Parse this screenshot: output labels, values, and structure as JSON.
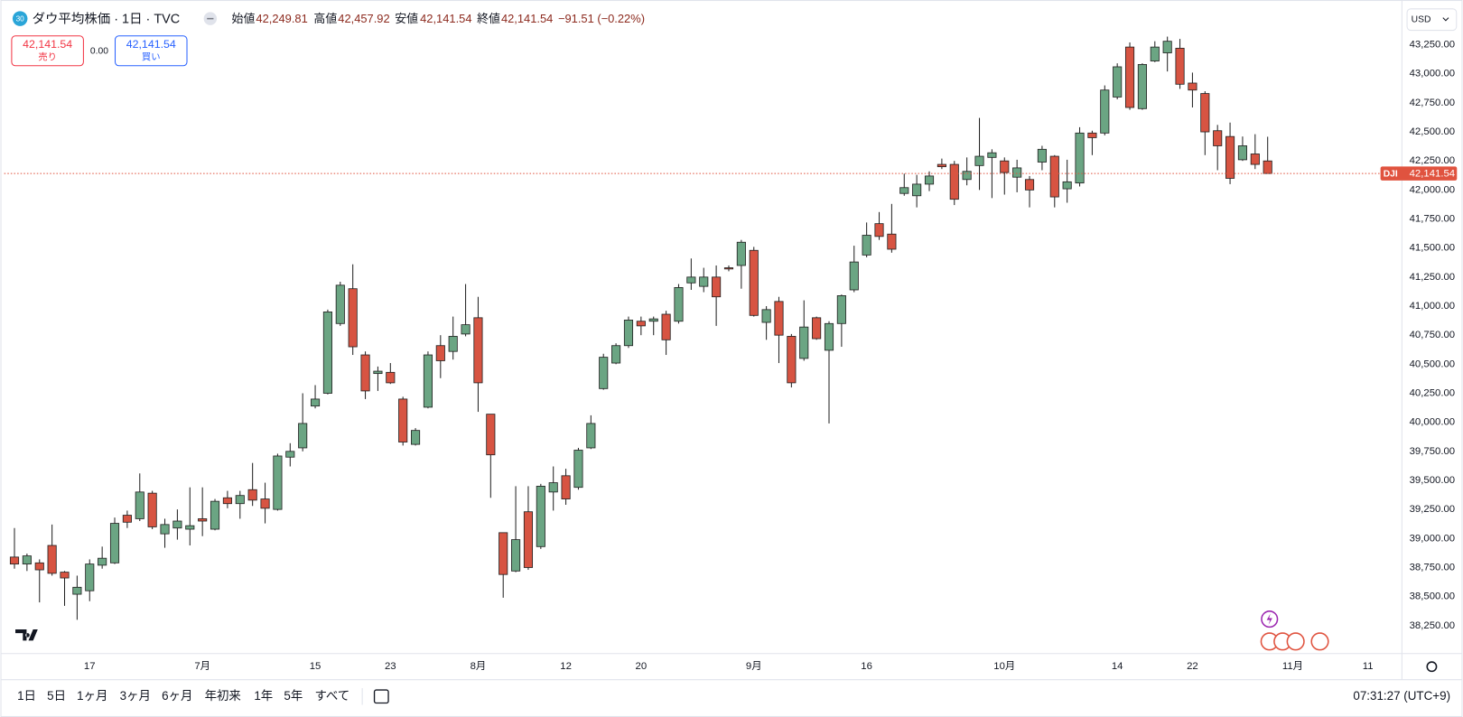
{
  "header": {
    "badge": "30",
    "title": "ダウ平均株価 · 1日 · TVC",
    "ohlc": [
      {
        "label": "始値",
        "value": "42,249.81"
      },
      {
        "label": "高値",
        "value": "42,457.92"
      },
      {
        "label": "安値",
        "value": "42,141.54"
      },
      {
        "label": "終値",
        "value": "42,141.54"
      }
    ],
    "change": "−91.51 (−0.22%)"
  },
  "trade": {
    "sell_price": "42,141.54",
    "sell_label": "売り",
    "spread": "0.00",
    "buy_price": "42,141.54",
    "buy_label": "買い"
  },
  "currency": "USD",
  "toolbar": {
    "ranges": [
      "1日",
      "5日",
      "1ヶ月",
      "3ヶ月",
      "6ヶ月",
      "年初来",
      "1年",
      "5年",
      "すべて"
    ],
    "clock": "07:31:27 (UTC+9)"
  },
  "chart_data": {
    "type": "candlestick",
    "categories": [
      null,
      null,
      null,
      null,
      null,
      null,
      "17",
      null,
      null,
      null,
      null,
      null,
      null,
      null,
      null,
      "7月",
      null,
      null,
      null,
      null,
      null,
      null,
      null,
      null,
      "15",
      null,
      null,
      null,
      null,
      null,
      "23",
      null,
      null,
      null,
      null,
      null,
      null,
      "8月",
      null,
      null,
      null,
      null,
      null,
      null,
      "12",
      null,
      null,
      null,
      null,
      null,
      "20",
      null,
      null,
      null,
      null,
      null,
      null,
      null,
      null,
      "9月",
      null,
      null,
      null,
      null,
      null,
      null,
      null,
      null,
      "16",
      null,
      null,
      null,
      null,
      null,
      null,
      null,
      null,
      null,
      null,
      "10月",
      null,
      null,
      null,
      null,
      null,
      null,
      null,
      null,
      "14",
      null,
      null,
      null,
      null,
      null,
      "22",
      null,
      null,
      null,
      null,
      null,
      null,
      null,
      "11月",
      null,
      null,
      null,
      null,
      null,
      "11"
    ],
    "series": [
      {
        "name": "DJI",
        "up_color": "#6ba583",
        "down_color": "#d75442",
        "wick_color": "#222222",
        "open": [
          38840,
          38780,
          38790,
          38940,
          38710,
          38520,
          38550,
          38770,
          38790,
          39200,
          39170,
          39390,
          39040,
          39090,
          39080,
          39170,
          39080,
          39350,
          39300,
          39420,
          39340,
          39250,
          39700,
          39780,
          40140,
          40250,
          40850,
          41150,
          40580,
          40420,
          40430,
          40200,
          39810,
          40130,
          40660,
          40610,
          40760,
          40900,
          40070,
          39050,
          38720,
          39230,
          38930,
          39400,
          39540,
          39440,
          39780,
          40290,
          40510,
          40660,
          40870,
          40870,
          40930,
          40870,
          41200,
          41170,
          41250,
          41330,
          41350,
          41480,
          40860,
          41040,
          40740,
          40550,
          40900,
          40620,
          40850,
          41140,
          41440,
          41710,
          41620,
          41970,
          41950,
          42050,
          42220,
          42220,
          42090,
          42210,
          42280,
          42250,
          42110,
          42090,
          42240,
          42290,
          42010,
          42060,
          42490,
          42490,
          42800,
          43230,
          42700,
          43110,
          43180,
          43220,
          42920,
          42830,
          42510,
          42460,
          42260,
          42310,
          42249.81,
          null,
          null,
          null,
          null,
          null,
          null,
          null,
          null
        ],
        "high": [
          39090,
          38870,
          38820,
          39120,
          38720,
          38680,
          38820,
          38930,
          39180,
          39240,
          39560,
          39410,
          39170,
          39250,
          39440,
          39440,
          39340,
          39410,
          39410,
          39650,
          39480,
          39730,
          39820,
          40250,
          40320,
          40970,
          41210,
          41360,
          40610,
          40480,
          40510,
          40220,
          39950,
          40610,
          40750,
          40910,
          41190,
          41080,
          40070,
          39050,
          39450,
          39450,
          39470,
          39620,
          39600,
          39780,
          40060,
          40590,
          40680,
          40910,
          40910,
          40910,
          40960,
          41190,
          41410,
          41330,
          41350,
          41350,
          41570,
          41510,
          41000,
          41080,
          40760,
          41050,
          40910,
          40870,
          41100,
          41520,
          41720,
          41810,
          41880,
          42140,
          42130,
          42160,
          42270,
          42250,
          42280,
          42620,
          42350,
          42280,
          42260,
          42120,
          42380,
          42300,
          42260,
          42540,
          42510,
          42900,
          43090,
          43270,
          43090,
          43280,
          43320,
          43300,
          43010,
          42850,
          42560,
          42580,
          42460,
          42480,
          42457.92,
          null,
          null,
          null,
          null,
          null,
          null,
          null,
          null
        ],
        "low": [
          38740,
          38720,
          38450,
          38680,
          38420,
          38300,
          38460,
          38740,
          38780,
          39090,
          39150,
          39080,
          38920,
          38990,
          38940,
          39020,
          39070,
          39260,
          39170,
          39280,
          39130,
          39240,
          39620,
          39750,
          40120,
          40240,
          40830,
          40580,
          40200,
          40270,
          40330,
          39800,
          39800,
          40120,
          40380,
          40540,
          40740,
          40090,
          39350,
          38490,
          38710,
          38730,
          38910,
          39240,
          39290,
          39420,
          39770,
          40280,
          40500,
          40640,
          40750,
          40750,
          40580,
          40850,
          41140,
          41120,
          40830,
          41300,
          41150,
          40910,
          40710,
          40510,
          40300,
          40530,
          40710,
          39990,
          40650,
          41120,
          41420,
          41570,
          41460,
          41950,
          41850,
          41990,
          42180,
          41870,
          42040,
          42000,
          41930,
          41960,
          41980,
          41850,
          42170,
          41850,
          41890,
          42030,
          42300,
          42470,
          42780,
          42690,
          42690,
          43100,
          43020,
          42870,
          42710,
          42300,
          42170,
          42050,
          42250,
          42180,
          42141.54,
          null,
          null,
          null,
          null,
          null,
          null,
          null,
          null
        ],
        "close": [
          38780,
          38850,
          38730,
          38700,
          38660,
          38580,
          38780,
          38830,
          39130,
          39140,
          39400,
          39100,
          39120,
          39150,
          39110,
          39150,
          39320,
          39300,
          39370,
          39330,
          39260,
          39710,
          39750,
          39990,
          40200,
          40950,
          41180,
          40650,
          40270,
          40440,
          40340,
          39830,
          39930,
          40580,
          40530,
          40740,
          40840,
          40340,
          39720,
          38690,
          38990,
          38750,
          39450,
          39480,
          39340,
          39760,
          39990,
          40560,
          40660,
          40880,
          40830,
          40890,
          40710,
          41160,
          41250,
          41250,
          41080,
          41320,
          41550,
          40920,
          40970,
          40750,
          40340,
          40820,
          40720,
          40850,
          41090,
          41380,
          41610,
          41600,
          41490,
          42020,
          42050,
          42120,
          42200,
          41920,
          42160,
          42290,
          42320,
          42150,
          42190,
          42000,
          42350,
          41940,
          42070,
          42490,
          42450,
          42860,
          43060,
          42710,
          43080,
          43230,
          43280,
          42910,
          42860,
          42500,
          42380,
          42100,
          42380,
          42220,
          42141.54,
          null,
          null,
          null,
          null,
          null,
          null,
          null,
          null
        ]
      }
    ],
    "last_price": {
      "value": 42141.54,
      "label": "42,141.54"
    },
    "last_price_color": "#e0533f",
    "ylim": [
      38009,
      43603
    ],
    "yticks": [
      {
        "value": 38250,
        "label": "38,250.00"
      },
      {
        "value": 38500,
        "label": "38,500.00"
      },
      {
        "value": 38750,
        "label": "38,750.00"
      },
      {
        "value": 39000,
        "label": "39,000.00"
      },
      {
        "value": 39250,
        "label": "39,250.00"
      },
      {
        "value": 39500,
        "label": "39,500.00"
      },
      {
        "value": 39750,
        "label": "39,750.00"
      },
      {
        "value": 40000,
        "label": "40,000.00"
      },
      {
        "value": 40250,
        "label": "40,250.00"
      },
      {
        "value": 40500,
        "label": "40,500.00"
      },
      {
        "value": 40750,
        "label": "40,750.00"
      },
      {
        "value": 41000,
        "label": "41,000.00"
      },
      {
        "value": 41250,
        "label": "41,250.00"
      },
      {
        "value": 41500,
        "label": "41,500.00"
      },
      {
        "value": 41750,
        "label": "41,750.00"
      },
      {
        "value": 42000,
        "label": "42,000.00"
      },
      {
        "value": 42250,
        "label": "42,250.00"
      },
      {
        "value": 42500,
        "label": "42,500.00"
      },
      {
        "value": 42750,
        "label": "42,750.00"
      },
      {
        "value": 43000,
        "label": "43,000.00"
      },
      {
        "value": 43250,
        "label": "43,250.00"
      }
    ],
    "grid": false
  }
}
